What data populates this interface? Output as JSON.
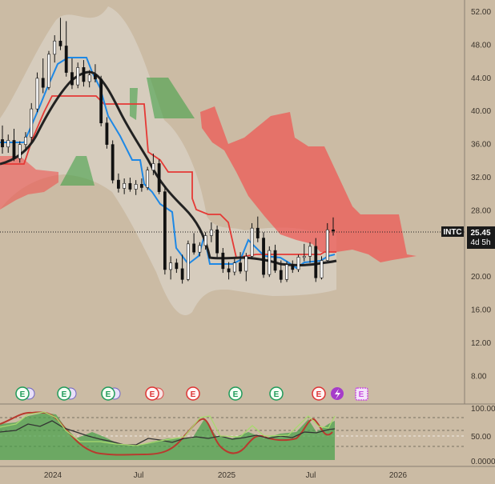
{
  "chart_data": {
    "type": "candlestick",
    "symbol": "INTC",
    "last_price": "25.45",
    "countdown": "4d 5h",
    "y_ticks": [
      "52.00",
      "48.00",
      "44.00",
      "40.00",
      "36.00",
      "32.00",
      "28.00",
      "20.00",
      "16.00",
      "12.00",
      "8.00"
    ],
    "ylim": [
      4,
      54
    ],
    "x_ticks": [
      "2024",
      "Jul",
      "2025",
      "Jul",
      "2026"
    ],
    "sub_ticks": [
      "100.00",
      "50.00",
      "0.0000"
    ],
    "candles": [
      [
        36.5,
        38.2,
        34.8,
        35.6
      ],
      [
        35.6,
        37.1,
        34.9,
        36.4
      ],
      [
        36.4,
        37.8,
        33.9,
        34.2
      ],
      [
        34.2,
        36.3,
        33.7,
        35.9
      ],
      [
        35.9,
        37.4,
        35.2,
        36.8
      ],
      [
        36.8,
        40.9,
        36.1,
        40.2
      ],
      [
        40.2,
        44.6,
        39.8,
        43.9
      ],
      [
        43.9,
        46.3,
        42.1,
        42.8
      ],
      [
        42.8,
        47.2,
        42.5,
        46.8
      ],
      [
        46.8,
        49.1,
        45.8,
        48.4
      ],
      [
        48.4,
        51.2,
        47.3,
        47.8
      ],
      [
        47.8,
        50.8,
        44.1,
        44.6
      ],
      [
        44.6,
        46.3,
        42.6,
        43.1
      ],
      [
        43.1,
        45.8,
        42.7,
        45.2
      ],
      [
        45.2,
        46.1,
        42.9,
        43.5
      ],
      [
        43.5,
        44.9,
        42.8,
        44.3
      ],
      [
        44.3,
        45.6,
        43.4,
        43.8
      ],
      [
        43.8,
        44.2,
        38.1,
        38.5
      ],
      [
        38.5,
        39.2,
        35.4,
        35.9
      ],
      [
        35.9,
        36.4,
        31.2,
        31.6
      ],
      [
        31.6,
        32.4,
        30.1,
        30.6
      ],
      [
        30.6,
        31.8,
        29.9,
        31.2
      ],
      [
        31.2,
        31.9,
        30.2,
        30.5
      ],
      [
        30.5,
        31.6,
        29.8,
        31.1
      ],
      [
        31.1,
        31.8,
        30.2,
        30.7
      ],
      [
        30.7,
        33.2,
        30.4,
        32.8
      ],
      [
        32.8,
        34.8,
        32.2,
        33.6
      ],
      [
        33.6,
        34.1,
        29.9,
        30.2
      ],
      [
        30.2,
        30.9,
        20.2,
        20.8
      ],
      [
        20.8,
        22.4,
        19.6,
        21.6
      ],
      [
        21.6,
        22.1,
        20.4,
        20.9
      ],
      [
        20.9,
        22.6,
        19.1,
        19.6
      ],
      [
        19.6,
        24.3,
        19.4,
        23.9
      ],
      [
        23.9,
        25.2,
        22.6,
        22.9
      ],
      [
        22.9,
        24.1,
        22.4,
        23.7
      ],
      [
        23.7,
        25.3,
        23.2,
        24.9
      ],
      [
        24.9,
        26.5,
        24.1,
        25.6
      ],
      [
        25.6,
        26.1,
        22.3,
        22.8
      ],
      [
        22.8,
        23.4,
        20.4,
        20.9
      ],
      [
        20.9,
        21.7,
        19.6,
        20.5
      ],
      [
        20.5,
        22.1,
        20.1,
        21.6
      ],
      [
        21.6,
        22.9,
        20.3,
        20.6
      ],
      [
        20.6,
        22.8,
        19.4,
        22.4
      ],
      [
        22.4,
        26.4,
        22.1,
        25.8
      ],
      [
        25.8,
        27.2,
        24.1,
        24.6
      ],
      [
        24.6,
        25.3,
        19.8,
        20.2
      ],
      [
        20.2,
        23.6,
        19.9,
        23.1
      ],
      [
        23.1,
        23.8,
        20.4,
        20.7
      ],
      [
        20.7,
        21.9,
        19.2,
        19.6
      ],
      [
        19.6,
        21.8,
        19.3,
        21.4
      ],
      [
        21.4,
        21.9,
        20.4,
        20.8
      ],
      [
        20.8,
        22.6,
        20.5,
        22.3
      ],
      [
        22.3,
        23.9,
        21.8,
        22.4
      ],
      [
        22.4,
        24.1,
        21.6,
        23.6
      ],
      [
        23.6,
        24.6,
        19.3,
        19.8
      ],
      [
        19.8,
        22.4,
        19.6,
        21.9
      ],
      [
        21.9,
        26.4,
        21.8,
        25.6
      ],
      [
        25.6,
        27.1,
        24.9,
        25.45
      ]
    ],
    "grid": false
  }
}
